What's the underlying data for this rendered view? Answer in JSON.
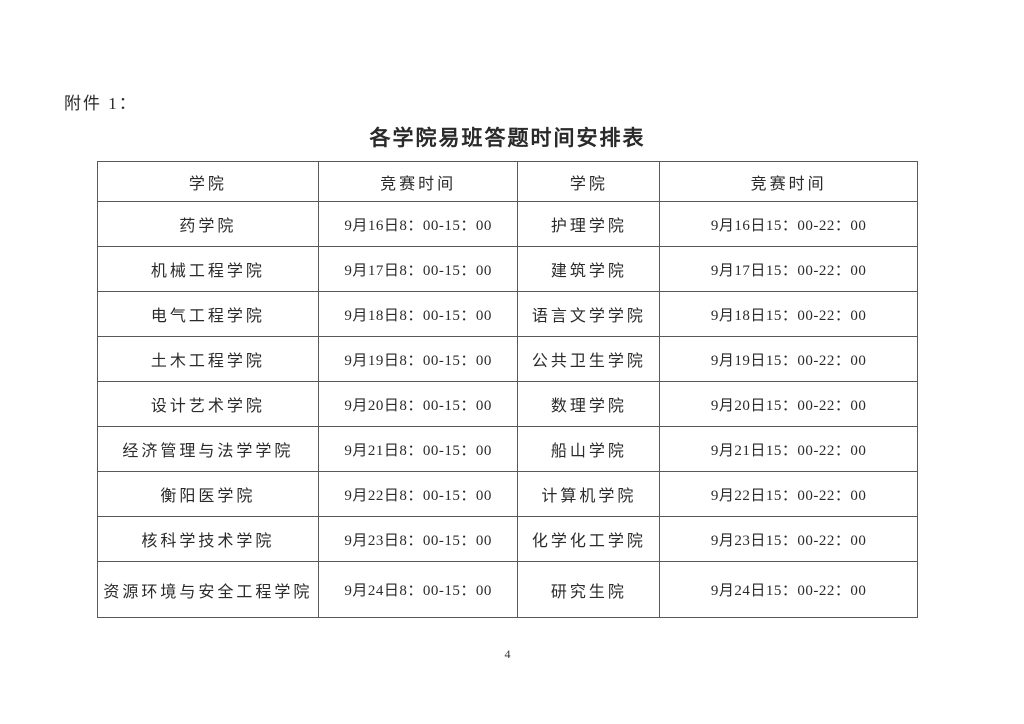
{
  "page": {
    "attachment_label": "附件 1：",
    "title": "各学院易班答题时间安排表",
    "page_number": "4"
  },
  "table": {
    "headers": [
      "学院",
      "竞赛时间",
      "学院",
      "竞赛时间"
    ],
    "rows": [
      [
        "药学院",
        "9月16日8：00-15：00",
        "护理学院",
        "9月16日15：00-22：00"
      ],
      [
        "机械工程学院",
        "9月17日8：00-15：00",
        "建筑学院",
        "9月17日15：00-22：00"
      ],
      [
        "电气工程学院",
        "9月18日8：00-15：00",
        "语言文学学院",
        "9月18日15：00-22：00"
      ],
      [
        "土木工程学院",
        "9月19日8：00-15：00",
        "公共卫生学院",
        "9月19日15：00-22：00"
      ],
      [
        "设计艺术学院",
        "9月20日8：00-15：00",
        "数理学院",
        "9月20日15：00-22：00"
      ],
      [
        "经济管理与法学学院",
        "9月21日8：00-15：00",
        "船山学院",
        "9月21日15：00-22：00"
      ],
      [
        "衡阳医学院",
        "9月22日8：00-15：00",
        "计算机学院",
        "9月22日15：00-22：00"
      ],
      [
        "核科学技术学院",
        "9月23日8：00-15：00",
        "化学化工学院",
        "9月23日15：00-22：00"
      ],
      [
        "资源环境与安全工程学院",
        "9月24日8：00-15：00",
        "研究生院",
        "9月24日15：00-22：00"
      ]
    ]
  }
}
